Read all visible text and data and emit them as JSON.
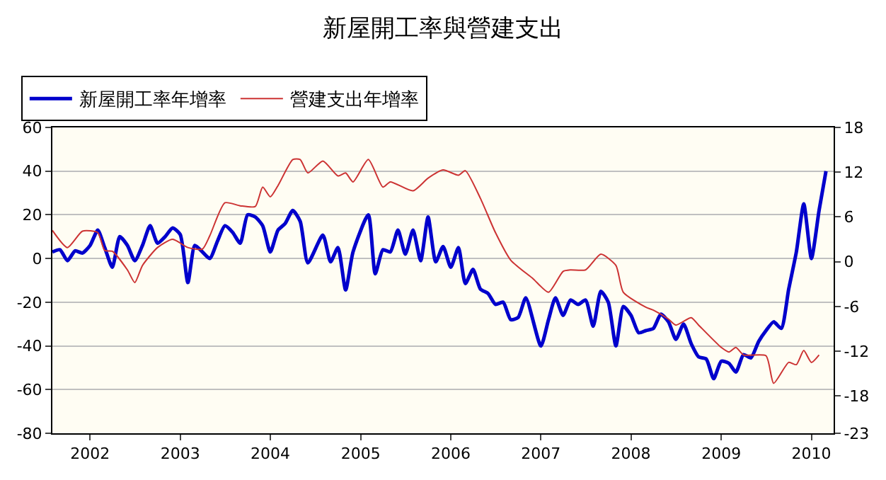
{
  "chart_data": {
    "type": "line",
    "title": "新屋開工率與營建支出",
    "legend": "top left",
    "grid": "y",
    "marker": "none",
    "line_style": "solid",
    "xlim": [
      "2001-08",
      "2010-04"
    ],
    "xticks": [
      "2002",
      "2003",
      "2004",
      "2005",
      "2006",
      "2007",
      "2008",
      "2009",
      "2010"
    ],
    "ylim": [
      -80,
      60
    ],
    "yticks": [
      -80,
      -60,
      -40,
      -20,
      0,
      20,
      40,
      60
    ],
    "y2lim": [
      -23,
      18
    ],
    "y2ticks": [
      -23,
      -18,
      -12,
      -6,
      0,
      6,
      12,
      18
    ],
    "series": [
      {
        "name": "新屋開工率年增率",
        "color": "#0000cc",
        "x": [
          "2001-08",
          "2001-09",
          "2001-10",
          "2001-11",
          "2001-12",
          "2002-01",
          "2002-02",
          "2002-03",
          "2002-04",
          "2002-05",
          "2002-06",
          "2002-07",
          "2002-08",
          "2002-09",
          "2002-10",
          "2002-11",
          "2002-12",
          "2003-01",
          "2003-02",
          "2003-03",
          "2003-04",
          "2003-05",
          "2003-06",
          "2003-07",
          "2003-08",
          "2003-09",
          "2003-10",
          "2003-11",
          "2003-12",
          "2004-01",
          "2004-02",
          "2004-03",
          "2004-04",
          "2004-05",
          "2004-06",
          "2004-08",
          "2004-09",
          "2004-10",
          "2004-11",
          "2004-12",
          "2005-02",
          "2005-03",
          "2005-04",
          "2005-05",
          "2005-06",
          "2005-07",
          "2005-08",
          "2005-09",
          "2005-10",
          "2005-11",
          "2005-12",
          "2006-01",
          "2006-02",
          "2006-03",
          "2006-04",
          "2006-05",
          "2006-06",
          "2006-07",
          "2006-08",
          "2006-09",
          "2006-10",
          "2006-11",
          "2007-01",
          "2007-02",
          "2007-03",
          "2007-04",
          "2007-05",
          "2007-06",
          "2007-07",
          "2007-08",
          "2007-09",
          "2007-10",
          "2007-11",
          "2007-12",
          "2008-01",
          "2008-02",
          "2008-03",
          "2008-04",
          "2008-05",
          "2008-06",
          "2008-07",
          "2008-08",
          "2008-09",
          "2008-10",
          "2008-11",
          "2008-12",
          "2009-01",
          "2009-02",
          "2009-03",
          "2009-04",
          "2009-05",
          "2009-06",
          "2009-07",
          "2009-08",
          "2009-09",
          "2009-10",
          "2009-11",
          "2009-12",
          "2010-01",
          "2010-02",
          "2010-03"
        ],
        "values": [
          3,
          4,
          -1,
          3.5,
          2.5,
          6,
          13,
          5,
          -4,
          10,
          6,
          -1,
          6,
          15,
          7,
          10,
          14,
          11,
          -11,
          6,
          3,
          0,
          8,
          15,
          12,
          7,
          20,
          19,
          15,
          3,
          13,
          16,
          22,
          17,
          -2,
          10.7,
          -1.5,
          5,
          -14.4,
          3,
          20,
          -7,
          4,
          3,
          13,
          2,
          13,
          -1,
          19,
          -1.5,
          5.5,
          -4,
          5,
          -11.5,
          -5,
          -14,
          -16,
          -21,
          -20,
          -28,
          -27,
          -18,
          -40,
          -28,
          -18,
          -26,
          -19,
          -21,
          -19,
          -31,
          -15,
          -20,
          -40,
          -22,
          -26,
          -34,
          -33,
          -32,
          -25.5,
          -29,
          -37,
          -30,
          -39,
          -45,
          -46,
          -55,
          -47,
          -48,
          -52,
          -44,
          -45.5,
          -38,
          -33,
          -29,
          -32,
          -14,
          3,
          25,
          0,
          22,
          40
        ]
      },
      {
        "name": "營建支出年增率",
        "color": "#cc3333",
        "axis": "y2",
        "x": [
          "2001-08",
          "2001-10",
          "2001-12",
          "2002-02",
          "2002-03",
          "2002-04",
          "2002-06",
          "2002-07",
          "2002-08",
          "2002-10",
          "2002-12",
          "2003-02",
          "2003-04",
          "2003-05",
          "2003-07",
          "2003-09",
          "2003-11",
          "2003-12",
          "2004-01",
          "2004-02",
          "2004-04",
          "2004-05",
          "2004-06",
          "2004-08",
          "2004-10",
          "2004-11",
          "2004-12",
          "2005-02",
          "2005-04",
          "2005-05",
          "2005-08",
          "2005-10",
          "2005-12",
          "2006-02",
          "2006-03",
          "2006-05",
          "2006-07",
          "2006-09",
          "2006-12",
          "2007-02",
          "2007-04",
          "2007-05",
          "2007-07",
          "2007-09",
          "2007-11",
          "2007-12",
          "2008-03",
          "2008-04",
          "2008-06",
          "2008-07",
          "2008-09",
          "2008-10",
          "2009-01",
          "2009-02",
          "2009-03",
          "2009-04",
          "2009-07",
          "2009-08",
          "2009-10",
          "2009-11",
          "2009-12",
          "2010-01",
          "2010-02"
        ],
        "values": [
          4.2,
          1.9,
          4.1,
          3.9,
          1.5,
          1.4,
          -1.1,
          -2.8,
          -0.5,
          1.9,
          3,
          1.9,
          1.7,
          3.5,
          7.9,
          7.5,
          7.4,
          10,
          8.7,
          10.2,
          13.7,
          13.7,
          11.9,
          13.5,
          11.5,
          11.9,
          10.7,
          13.7,
          10,
          10.7,
          9.5,
          11.2,
          12.3,
          11.6,
          12.2,
          8.5,
          3.9,
          0.2,
          -2.3,
          -4.1,
          -1.3,
          -1.1,
          -1.1,
          1,
          -0.5,
          -4.1,
          -6.1,
          -6.5,
          -7.7,
          -8.5,
          -7.5,
          -8.5,
          -11.5,
          -12.1,
          -11.5,
          -12.5,
          -12.6,
          -16.3,
          -13.5,
          -13.8,
          -11.9,
          -13.5,
          -12.5
        ]
      }
    ]
  }
}
